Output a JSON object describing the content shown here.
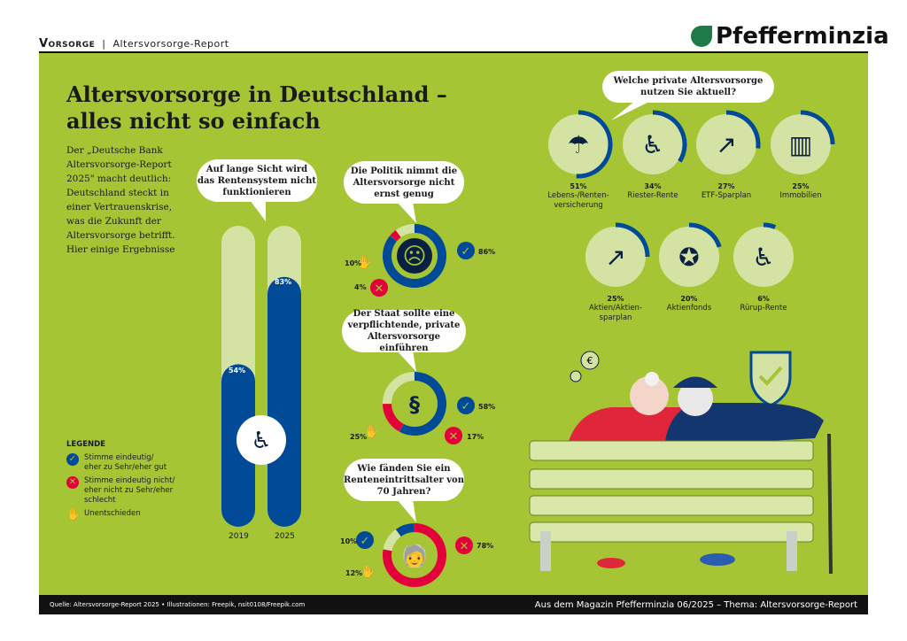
{
  "header": {
    "section": "Vorsorge",
    "subsection": "Altersvorsorge-Report",
    "brand": "Pfefferminzia"
  },
  "title_line1": "Altersvorsorge in Deutschland –",
  "title_line2": "alles nicht so einfach",
  "intro": "Der „Deutsche Bank Altersvorsorge-Report 2025\" macht deutlich: Deutschland steckt in einer Vertrauenskrise, was die Zukunft der Altersvorsorge betrifft. Hier einige Ergebnisse",
  "legend": {
    "title": "LEGENDE",
    "agree": "Stimme eindeutig/ eher zu Sehr/eher gut",
    "disagree": "Stimme eindeutig nicht/ eher nicht zu Sehr/eher schlecht",
    "undecided": "Unentschieden"
  },
  "colors": {
    "background": "#a6c535",
    "agree": "#004a97",
    "disagree": "#e4003a",
    "undecided": "#d4e3a3"
  },
  "footer": {
    "source": "Quelle: Altersvorsorge-Report 2025 • Illustrationen: Freepik, nsit0108/Freepik.com",
    "magazine": "Aus dem Magazin Pfefferminzia 06/2025 – Thema: Altersvorsorge-Report"
  },
  "chart_data": [
    {
      "type": "bar",
      "question": "Auf lange Sicht wird das Rentensystem nicht funktionieren",
      "categories": [
        "2019",
        "2025"
      ],
      "values": [
        54,
        83
      ],
      "labels": [
        "54%",
        "83%"
      ],
      "ylim": [
        0,
        100
      ]
    },
    {
      "type": "pie",
      "question": "Die Politik nimmt die Altersvorsorge nicht ernst genug",
      "agree": 86,
      "disagree": 4,
      "undecided": 10,
      "labels": {
        "agree": "86%",
        "disagree": "4%",
        "undecided": "10%"
      }
    },
    {
      "type": "pie",
      "question": "Der Staat sollte eine verpflichtende, private Altersvorsorge einführen",
      "agree": 58,
      "disagree": 17,
      "undecided": 25,
      "labels": {
        "agree": "58%",
        "disagree": "17%",
        "undecided": "25%"
      }
    },
    {
      "type": "pie",
      "question": "Wie fänden Sie ein Renteneintrittsalter von 70 Jahren?",
      "agree": 10,
      "disagree": 78,
      "undecided": 12,
      "labels": {
        "agree": "10%",
        "disagree": "78%",
        "undecided": "12%"
      }
    },
    {
      "type": "bar",
      "question": "Welche private Altersvorsorge nutzen Sie aktuell?",
      "categories": [
        "Lebens-/Renten-versicherung",
        "Riester-Rente",
        "ETF-Sparplan",
        "Immobilien",
        "Aktien/Aktien-sparplan",
        "Aktienfonds",
        "Rürup-Rente"
      ],
      "values": [
        51,
        34,
        27,
        25,
        25,
        20,
        6
      ],
      "labels": [
        "51%",
        "34%",
        "27%",
        "25%",
        "25%",
        "20%",
        "6%"
      ],
      "icons": [
        "umbrella-family-icon",
        "rocking-chair-eagle-icon",
        "growth-chart-icon",
        "building-icon",
        "growth-chart-icon",
        "award-rosette-icon",
        "rocking-chair-eagle-icon"
      ]
    }
  ]
}
